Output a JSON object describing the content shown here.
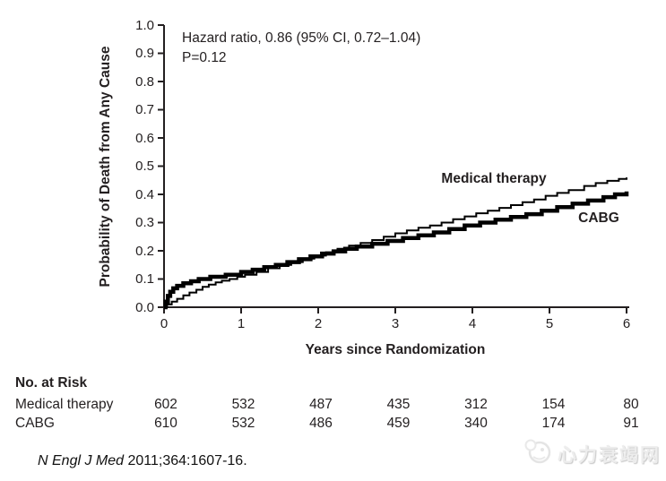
{
  "chart_data": {
    "type": "line",
    "subtype": "kaplan-meier-step",
    "annotation": {
      "line1": "Hazard ratio, 0.86 (95% CI, 0.72–1.04)",
      "line2": "P=0.12"
    },
    "xlabel": "Years since Randomization",
    "ylabel": "Probability of Death from Any Cause",
    "xlim": [
      0,
      6
    ],
    "ylim": [
      0.0,
      1.0
    ],
    "x_ticks": [
      "0",
      "1",
      "2",
      "3",
      "4",
      "5",
      "6"
    ],
    "y_ticks": [
      "1.0",
      "0.9",
      "0.8",
      "0.7",
      "0.6",
      "0.5",
      "0.4",
      "0.3",
      "0.2",
      "0.1",
      "0.0"
    ],
    "grid": false,
    "legend": "inline-labels",
    "line_color": "#000000",
    "series": [
      {
        "name": "Medical therapy",
        "style": "thin",
        "points": [
          [
            0,
            0
          ],
          [
            0.04,
            0.01
          ],
          [
            0.1,
            0.02
          ],
          [
            0.17,
            0.03
          ],
          [
            0.25,
            0.042
          ],
          [
            0.33,
            0.052
          ],
          [
            0.42,
            0.062
          ],
          [
            0.5,
            0.072
          ],
          [
            0.58,
            0.08
          ],
          [
            0.67,
            0.088
          ],
          [
            0.75,
            0.094
          ],
          [
            0.85,
            0.1
          ],
          [
            0.95,
            0.108
          ],
          [
            1.05,
            0.115
          ],
          [
            1.2,
            0.125
          ],
          [
            1.35,
            0.138
          ],
          [
            1.5,
            0.15
          ],
          [
            1.65,
            0.16
          ],
          [
            1.8,
            0.172
          ],
          [
            1.95,
            0.183
          ],
          [
            2.1,
            0.195
          ],
          [
            2.25,
            0.207
          ],
          [
            2.4,
            0.218
          ],
          [
            2.55,
            0.228
          ],
          [
            2.7,
            0.238
          ],
          [
            2.85,
            0.25
          ],
          [
            3.0,
            0.262
          ],
          [
            3.15,
            0.272
          ],
          [
            3.3,
            0.282
          ],
          [
            3.45,
            0.29
          ],
          [
            3.6,
            0.3
          ],
          [
            3.75,
            0.312
          ],
          [
            3.9,
            0.322
          ],
          [
            4.05,
            0.333
          ],
          [
            4.2,
            0.342
          ],
          [
            4.35,
            0.352
          ],
          [
            4.5,
            0.362
          ],
          [
            4.65,
            0.372
          ],
          [
            4.8,
            0.382
          ],
          [
            4.95,
            0.395
          ],
          [
            5.1,
            0.405
          ],
          [
            5.25,
            0.415
          ],
          [
            5.45,
            0.43
          ],
          [
            5.6,
            0.44
          ],
          [
            5.75,
            0.448
          ],
          [
            5.9,
            0.455
          ],
          [
            6.0,
            0.46
          ]
        ]
      },
      {
        "name": "CABG",
        "style": "thick",
        "points": [
          [
            0,
            0
          ],
          [
            0.02,
            0.02
          ],
          [
            0.05,
            0.04
          ],
          [
            0.08,
            0.055
          ],
          [
            0.12,
            0.067
          ],
          [
            0.17,
            0.076
          ],
          [
            0.25,
            0.085
          ],
          [
            0.35,
            0.092
          ],
          [
            0.45,
            0.1
          ],
          [
            0.6,
            0.108
          ],
          [
            0.8,
            0.115
          ],
          [
            1.0,
            0.125
          ],
          [
            1.15,
            0.133
          ],
          [
            1.3,
            0.142
          ],
          [
            1.45,
            0.15
          ],
          [
            1.6,
            0.16
          ],
          [
            1.75,
            0.17
          ],
          [
            1.9,
            0.18
          ],
          [
            2.05,
            0.19
          ],
          [
            2.2,
            0.198
          ],
          [
            2.35,
            0.207
          ],
          [
            2.5,
            0.215
          ],
          [
            2.7,
            0.225
          ],
          [
            2.9,
            0.235
          ],
          [
            3.1,
            0.245
          ],
          [
            3.3,
            0.255
          ],
          [
            3.5,
            0.265
          ],
          [
            3.7,
            0.277
          ],
          [
            3.9,
            0.29
          ],
          [
            4.1,
            0.3
          ],
          [
            4.3,
            0.31
          ],
          [
            4.5,
            0.32
          ],
          [
            4.7,
            0.33
          ],
          [
            4.9,
            0.342
          ],
          [
            5.1,
            0.355
          ],
          [
            5.3,
            0.367
          ],
          [
            5.5,
            0.378
          ],
          [
            5.7,
            0.39
          ],
          [
            5.85,
            0.4
          ],
          [
            6.0,
            0.41
          ]
        ]
      }
    ]
  },
  "at_risk": {
    "header": "No. at Risk",
    "rows": [
      {
        "label": "Medical therapy",
        "counts": [
          "602",
          "532",
          "487",
          "435",
          "312",
          "154",
          "80"
        ]
      },
      {
        "label": "CABG",
        "counts": [
          "610",
          "532",
          "486",
          "459",
          "340",
          "174",
          "91"
        ]
      }
    ]
  },
  "citation": {
    "journal": "N Engl J Med",
    "rest": " 2011;364:1607-16."
  },
  "watermark": {
    "text": "心力衰竭网"
  },
  "colors": {
    "curve": "#000000",
    "text": "#231f20",
    "watermark": "#ededed"
  }
}
